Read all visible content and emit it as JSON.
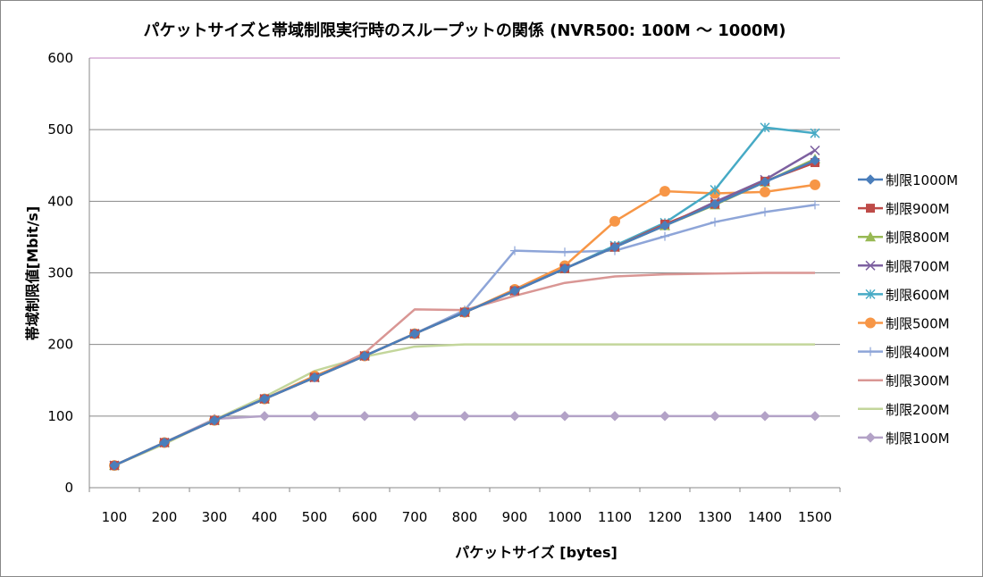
{
  "chart_data": {
    "type": "line",
    "title": "パケットサイズと帯域制限実行時のスループットの関係 (NVR500: 100M 〜 1000M)",
    "xlabel": "パケットサイズ [bytes]",
    "ylabel": "帯域制限値[Mbit/s]",
    "categories": [
      "100",
      "200",
      "300",
      "400",
      "500",
      "600",
      "700",
      "800",
      "900",
      "1000",
      "1100",
      "1200",
      "1300",
      "1400",
      "1500"
    ],
    "ylim": [
      0,
      600
    ],
    "yticks": [
      "0",
      "100",
      "200",
      "300",
      "400",
      "500",
      "600"
    ],
    "grid": true,
    "legend": "right",
    "series": [
      {
        "name": "制限1000M",
        "color": "#4A7EBB",
        "marker": "diamond",
        "values": [
          31,
          63,
          94,
          124,
          154,
          184,
          215,
          245,
          275,
          306,
          336,
          366,
          396,
          427,
          457
        ]
      },
      {
        "name": "制限900M",
        "color": "#BE4B48",
        "marker": "square",
        "values": [
          31,
          63,
          94,
          124,
          154,
          184,
          215,
          245,
          275,
          306,
          336,
          368,
          396,
          428,
          454
        ]
      },
      {
        "name": "制限800M",
        "color": "#98B954",
        "marker": "triangle",
        "values": [
          31,
          63,
          94,
          124,
          154,
          184,
          215,
          245,
          275,
          306,
          336,
          366,
          395,
          427,
          459
        ]
      },
      {
        "name": "制限700M",
        "color": "#7D60A0",
        "marker": "x",
        "values": [
          31,
          63,
          94,
          124,
          154,
          184,
          215,
          245,
          275,
          306,
          336,
          366,
          399,
          430,
          471
        ]
      },
      {
        "name": "制限600M",
        "color": "#46AAC5",
        "marker": "star",
        "values": [
          31,
          63,
          94,
          124,
          154,
          184,
          215,
          245,
          275,
          306,
          338,
          370,
          416,
          503,
          495
        ]
      },
      {
        "name": "制限500M",
        "color": "#F79646",
        "marker": "circle",
        "values": [
          31,
          63,
          94,
          124,
          156,
          184,
          215,
          245,
          277,
          310,
          372,
          414,
          411,
          413,
          423
        ]
      },
      {
        "name": "制限400M",
        "color": "#8EA5D8",
        "marker": "plus",
        "values": [
          31,
          63,
          94,
          124,
          154,
          184,
          215,
          248,
          331,
          329,
          331,
          351,
          371,
          385,
          395
        ]
      },
      {
        "name": "制限300M",
        "color": "#D99694",
        "marker": "none",
        "values": [
          31,
          63,
          94,
          124,
          154,
          188,
          249,
          248,
          268,
          286,
          295,
          298,
          299,
          300,
          300
        ]
      },
      {
        "name": "制限200M",
        "color": "#C3D69B",
        "marker": "none",
        "values": [
          31,
          61,
          95,
          127,
          163,
          183,
          197,
          200,
          200,
          200,
          200,
          200,
          200,
          200,
          200
        ]
      },
      {
        "name": "制限100M",
        "color": "#B3A2C7",
        "marker": "diamond",
        "values": [
          31,
          63,
          96,
          100,
          100,
          100,
          100,
          100,
          100,
          100,
          100,
          100,
          100,
          100,
          100
        ]
      }
    ]
  }
}
